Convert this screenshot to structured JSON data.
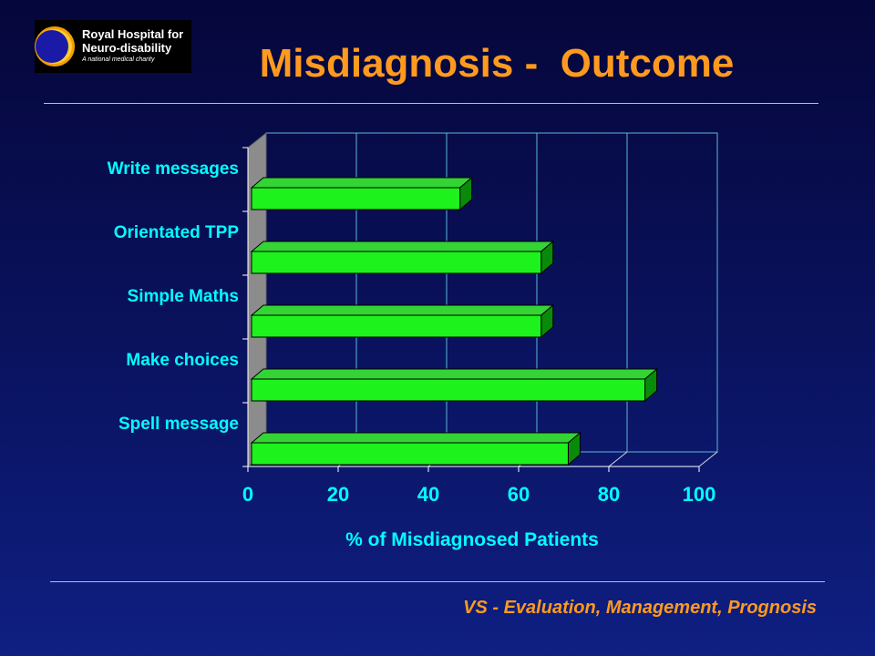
{
  "logo": {
    "line1": "Royal Hospital for",
    "line2": "Neuro-disability",
    "tagline": "A national medical charity"
  },
  "title": "Misdiagnosis -  Outcome",
  "footer": "VS - Evaluation, Management, Prognosis",
  "colors": {
    "title": "#ff9a1e",
    "bar_front": "#1df21d",
    "bar_top": "#34d434",
    "bar_side": "#0a8a0a",
    "labels": "#00ffff",
    "gridlines": "#5bb8d6"
  },
  "chart_data": {
    "type": "bar",
    "orientation": "horizontal",
    "categories": [
      "Write messages",
      "Orientated TPP",
      "Simple Maths",
      "Make choices",
      "Spell message"
    ],
    "values": [
      47,
      65,
      65,
      88,
      71
    ],
    "xlabel": "% of Misdiagnosed Patients",
    "xlim": [
      0,
      100
    ],
    "xticks": [
      "0",
      "20",
      "40",
      "60",
      "80",
      "100"
    ],
    "grid": true,
    "style": "3d"
  }
}
